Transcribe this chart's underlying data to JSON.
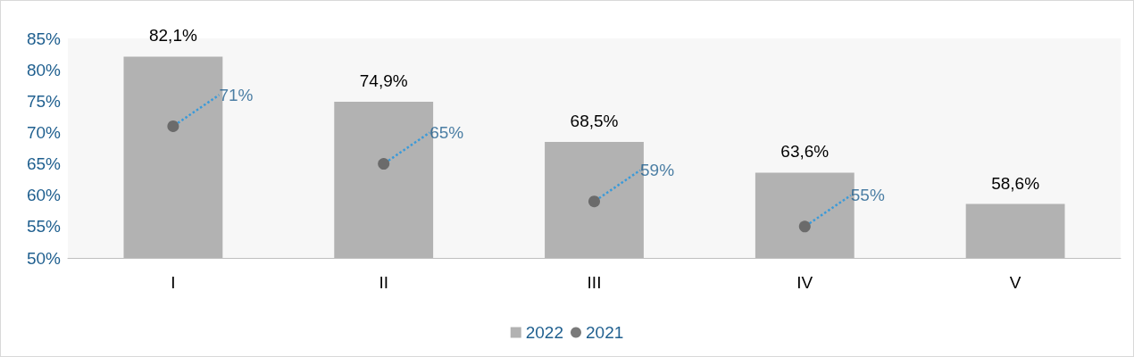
{
  "chart_data": {
    "type": "bar",
    "categories": [
      "I",
      "II",
      "III",
      "IV",
      "V"
    ],
    "series": [
      {
        "name": "2022",
        "color": "#b2b2b2",
        "values": [
          82.1,
          74.9,
          68.5,
          63.6,
          58.6
        ],
        "value_labels": [
          "82,1%",
          "74,9%",
          "68,5%",
          "63,6%",
          "58,6%"
        ]
      },
      {
        "name": "2021",
        "type": "scatter",
        "color": "#595959",
        "values": [
          71,
          65,
          59,
          55,
          null
        ],
        "value_labels": [
          "71%",
          "65%",
          "59%",
          "55%",
          null
        ]
      }
    ],
    "ylim": [
      50,
      85
    ],
    "yticks": [
      {
        "value": 50,
        "label": "50%"
      },
      {
        "value": 55,
        "label": "55%"
      },
      {
        "value": 60,
        "label": "60%"
      },
      {
        "value": 65,
        "label": "65%"
      },
      {
        "value": 70,
        "label": "70%"
      },
      {
        "value": 75,
        "label": "75%"
      },
      {
        "value": 80,
        "label": "80%"
      },
      {
        "value": 85,
        "label": "85%"
      }
    ],
    "grid": false,
    "legend": "bottom",
    "marker": "circle"
  }
}
